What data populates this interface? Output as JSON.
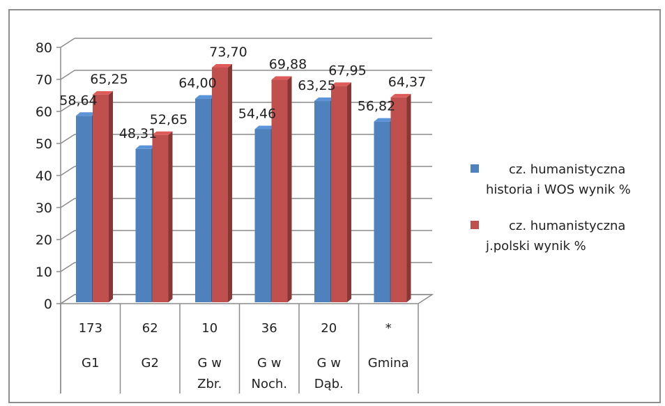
{
  "chart_data": {
    "type": "bar",
    "categories": [
      {
        "lines": [
          "173",
          "G1"
        ]
      },
      {
        "lines": [
          "62",
          "G2"
        ]
      },
      {
        "lines": [
          "10",
          "G w",
          "Zbr."
        ]
      },
      {
        "lines": [
          "36",
          "G w",
          "Noch."
        ]
      },
      {
        "lines": [
          "20",
          "G w",
          "Dąb."
        ]
      },
      {
        "lines": [
          "*",
          "Gmina"
        ]
      }
    ],
    "series": [
      {
        "name_lines": [
          "cz. humanistyczna",
          "historia i WOS wynik %"
        ],
        "color": "#4f81bd",
        "values": [
          58.64,
          48.31,
          64.0,
          54.46,
          63.25,
          56.82
        ],
        "labels": [
          "58,64",
          "48,31",
          "64,00",
          "54,46",
          "63,25",
          "56,82"
        ]
      },
      {
        "name_lines": [
          "cz. humanistyczna",
          "j.polski wynik %"
        ],
        "color": "#c0504d",
        "values": [
          65.25,
          52.65,
          73.7,
          69.88,
          67.95,
          64.37
        ],
        "labels": [
          "65,25",
          "52,65",
          "73,70",
          "69,88",
          "67,95",
          "64,37"
        ]
      }
    ],
    "y_ticks": [
      "0",
      "10",
      "20",
      "30",
      "40",
      "50",
      "60",
      "70",
      "80"
    ],
    "ylim": [
      0,
      80
    ],
    "grid": true,
    "legend_position": "right",
    "style": "3d-clustered-column"
  }
}
